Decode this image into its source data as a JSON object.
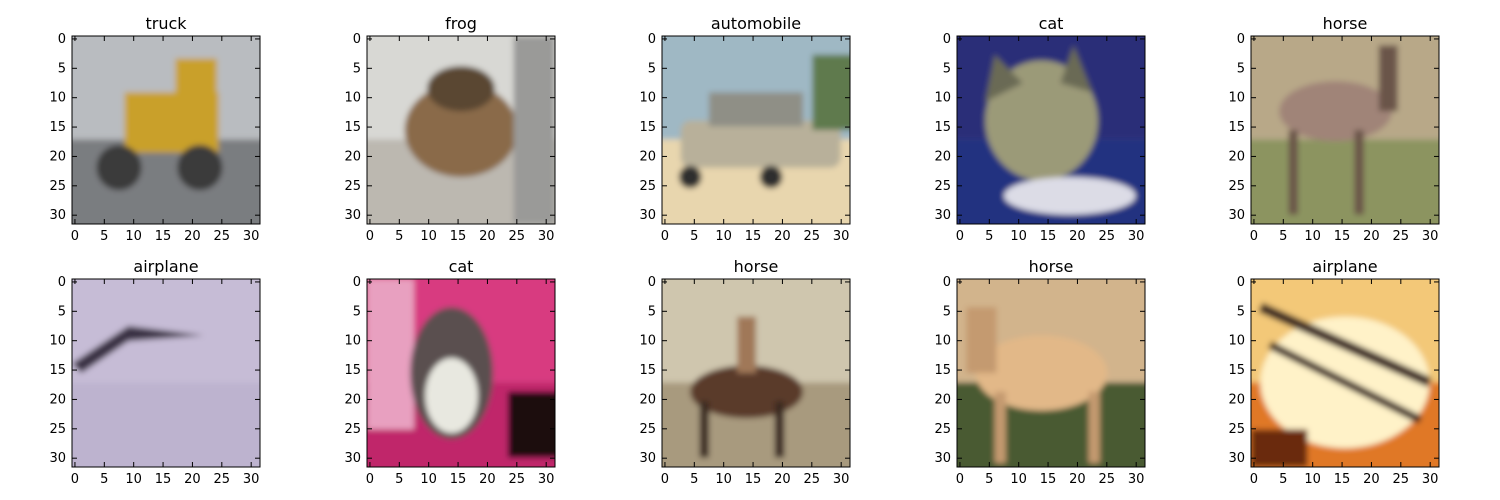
{
  "figure": {
    "panels": [
      {
        "title": "truck",
        "scene": {
          "sky": "#b9bcc0",
          "ground": "#7a7d80",
          "obj": "#c9a02a",
          "obj2": "#3a3a3a",
          "shape": "truck"
        }
      },
      {
        "title": "frog",
        "scene": {
          "sky": "#d8d8d4",
          "ground": "#bcb8b0",
          "obj": "#8a6a48",
          "obj2": "#5a4632",
          "shape": "frog"
        }
      },
      {
        "title": "automobile",
        "scene": {
          "sky": "#9fb8c4",
          "ground": "#e8d6ae",
          "obj": "#b8b09a",
          "obj2": "#2e2e2e",
          "shape": "car"
        }
      },
      {
        "title": "cat",
        "scene": {
          "sky": "#2a2f78",
          "ground": "#223080",
          "obj": "#9b9a78",
          "obj2": "#6a6a55",
          "shape": "cat"
        }
      },
      {
        "title": "horse",
        "scene": {
          "sky": "#b8a888",
          "ground": "#8c9460",
          "obj": "#a08478",
          "obj2": "#6a5448",
          "shape": "horse"
        }
      },
      {
        "title": "airplane",
        "scene": {
          "sky": "#c6bcd6",
          "ground": "#bdb3cf",
          "obj": "#3b3344",
          "obj2": "#2a2430",
          "shape": "plane"
        }
      },
      {
        "title": "cat",
        "scene": {
          "sky": "#d83a80",
          "ground": "#c0286a",
          "obj": "#5a5050",
          "obj2": "#e8e8e0",
          "shape": "cat2"
        }
      },
      {
        "title": "horse",
        "scene": {
          "sky": "#cfc6ae",
          "ground": "#a89a7e",
          "obj": "#5a3a2a",
          "obj2": "#3a2a20",
          "shape": "rider"
        }
      },
      {
        "title": "horse",
        "scene": {
          "sky": "#d2b48c",
          "ground": "#4a5a30",
          "obj": "#e2b888",
          "obj2": "#c49a70",
          "shape": "horse2"
        }
      },
      {
        "title": "airplane",
        "scene": {
          "sky": "#f3c878",
          "ground": "#e07828",
          "obj": "#3a2820",
          "obj2": "#fff2c8",
          "shape": "biplane"
        }
      }
    ],
    "x_ticks": [
      "0",
      "5",
      "10",
      "15",
      "20",
      "25",
      "30"
    ],
    "y_ticks": [
      "0",
      "5",
      "10",
      "15",
      "20",
      "25",
      "30"
    ],
    "axis_range": [
      0,
      32
    ],
    "tick_values": [
      0,
      5,
      10,
      15,
      20,
      25,
      30
    ],
    "axis_color": "#000000"
  }
}
